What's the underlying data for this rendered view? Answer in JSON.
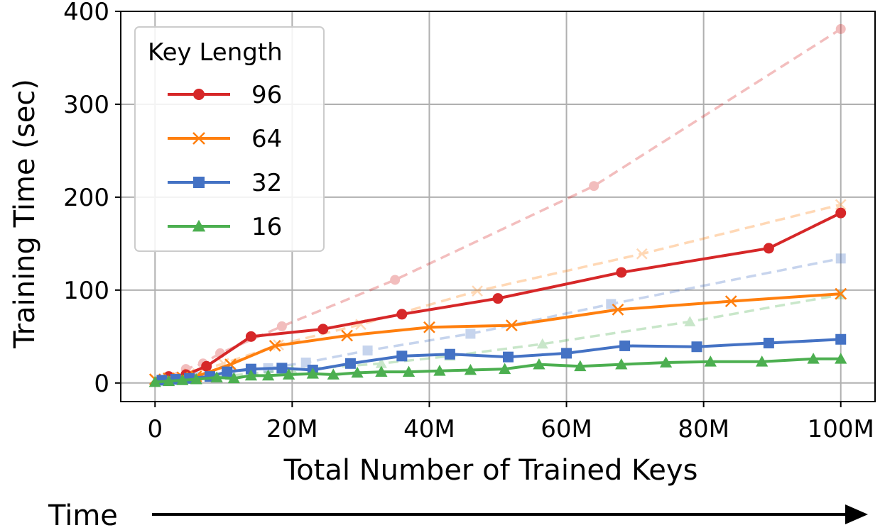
{
  "chart_data": {
    "type": "line",
    "xlabel": "Total Number of Trained Keys",
    "ylabel": "Training Time (sec)",
    "xlim": [
      -5000000,
      105000000
    ],
    "ylim": [
      -20,
      400
    ],
    "x_ticks": [
      {
        "value": 0,
        "label": "0"
      },
      {
        "value": 20000000,
        "label": "20M"
      },
      {
        "value": 40000000,
        "label": "40M"
      },
      {
        "value": 60000000,
        "label": "60M"
      },
      {
        "value": 80000000,
        "label": "80M"
      },
      {
        "value": 100000000,
        "label": "100M"
      }
    ],
    "y_ticks": [
      {
        "value": 0,
        "label": "0"
      },
      {
        "value": 100,
        "label": "100"
      },
      {
        "value": 200,
        "label": "200"
      },
      {
        "value": 300,
        "label": "300"
      },
      {
        "value": 400,
        "label": "400"
      }
    ],
    "grid": true,
    "legend": {
      "title": "Key Length",
      "position": "top-left"
    },
    "footer": {
      "label": "Time",
      "arrow": true
    },
    "series": [
      {
        "name": "96",
        "color": "#d62728",
        "marker": "circle",
        "x": [
          2000000,
          4500000,
          7500000,
          14000000,
          24500000,
          36000000,
          50000000,
          68000000,
          89500000,
          100000000
        ],
        "y": [
          7,
          9,
          18,
          50,
          58,
          74,
          91,
          119,
          145,
          183
        ],
        "faded": {
          "x": [
            2000000,
            4500000,
            7000000,
            9500000,
            18500000,
            35000000,
            64000000,
            100000000
          ],
          "y": [
            7,
            15,
            21,
            32,
            61,
            111,
            212,
            381
          ]
        }
      },
      {
        "name": "64",
        "color": "#ff7f0e",
        "marker": "x",
        "x": [
          0,
          2000000,
          4000000,
          6000000,
          11000000,
          17500000,
          28000000,
          40000000,
          52000000,
          67500000,
          84000000,
          100000000
        ],
        "y": [
          4,
          5,
          6,
          7,
          20,
          40,
          51,
          60,
          62,
          79,
          88,
          96
        ],
        "faded": {
          "x": [
            0,
            5000000,
            10000000,
            18000000,
            30000000,
            47000000,
            71000000,
            100000000
          ],
          "y": [
            4,
            10,
            21,
            41,
            63,
            99,
            139,
            192
          ]
        }
      },
      {
        "name": "32",
        "color": "#4472c4",
        "marker": "square",
        "x": [
          1000000,
          3000000,
          5000000,
          8000000,
          10500000,
          14000000,
          18500000,
          23000000,
          28500000,
          36000000,
          43000000,
          51500000,
          60000000,
          68500000,
          79000000,
          89500000,
          100000000
        ],
        "y": [
          3,
          4,
          5,
          7,
          12,
          15,
          16,
          14,
          21,
          29,
          31,
          28,
          32,
          40,
          39,
          43,
          47
        ],
        "faded": {
          "x": [
            1000000,
            6000000,
            11000000,
            16500000,
            22000000,
            31000000,
            46000000,
            66500000,
            100000000
          ],
          "y": [
            3,
            7,
            12,
            16,
            22,
            35,
            53,
            85,
            134
          ]
        }
      },
      {
        "name": "16",
        "color": "#4caf50",
        "marker": "triangle",
        "x": [
          0,
          2000000,
          4000000,
          6000000,
          9000000,
          11500000,
          14000000,
          16500000,
          19500000,
          23000000,
          26000000,
          29500000,
          33000000,
          37000000,
          41500000,
          46000000,
          51000000,
          56000000,
          62000000,
          68000000,
          74500000,
          81000000,
          88500000,
          96000000,
          100000000
        ],
        "y": [
          1,
          2,
          3,
          4,
          6,
          5,
          8,
          8,
          9,
          10,
          9,
          11,
          12,
          12,
          13,
          14,
          15,
          20,
          18,
          20,
          22,
          23,
          23,
          26,
          26
        ],
        "faded": {
          "x": [
            0,
            5000000,
            11000000,
            20000000,
            33000000,
            43000000,
            56500000,
            78000000,
            100000000
          ],
          "y": [
            1,
            4,
            8,
            14,
            21,
            29,
            42,
            66,
            95
          ]
        }
      }
    ]
  }
}
